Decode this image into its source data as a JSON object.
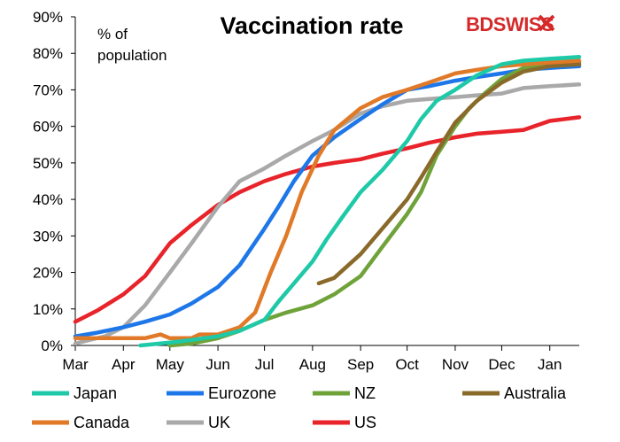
{
  "brand": {
    "logo_text": "BDSWISS",
    "logo_color": "#d42a2a"
  },
  "chart_data": {
    "type": "line",
    "title": "Vaccination rate",
    "unit_label": [
      "% of",
      "population"
    ],
    "xlabel": "",
    "ylabel": "",
    "x_ticks": [
      "Mar",
      "Apr",
      "May",
      "Jun",
      "Jul",
      "Aug",
      "Sep",
      "Oct",
      "Nov",
      "Dec",
      "Jan"
    ],
    "x_range": [
      "2021-03-01",
      "2022-01-20"
    ],
    "ylim": [
      0,
      90
    ],
    "y_ticks": [
      0,
      10,
      20,
      30,
      40,
      50,
      60,
      70,
      80,
      90
    ],
    "y_tick_labels": [
      "0%",
      "10%",
      "20%",
      "30%",
      "40%",
      "50%",
      "60%",
      "70%",
      "80%",
      "90%"
    ],
    "grid": false,
    "legend_position": "bottom",
    "series": [
      {
        "name": "Japan",
        "color": "#1ec9a8",
        "points": [
          [
            "2021-04-12",
            0
          ],
          [
            "2021-05-01",
            0.8
          ],
          [
            "2021-05-15",
            1.5
          ],
          [
            "2021-06-01",
            2.5
          ],
          [
            "2021-06-15",
            4
          ],
          [
            "2021-07-01",
            7
          ],
          [
            "2021-07-10",
            12
          ],
          [
            "2021-07-20",
            17
          ],
          [
            "2021-08-01",
            23
          ],
          [
            "2021-08-10",
            29
          ],
          [
            "2021-08-20",
            35
          ],
          [
            "2021-09-01",
            42
          ],
          [
            "2021-09-15",
            48
          ],
          [
            "2021-10-01",
            56
          ],
          [
            "2021-10-10",
            62
          ],
          [
            "2021-10-20",
            67
          ],
          [
            "2021-11-01",
            70
          ],
          [
            "2021-11-15",
            74
          ],
          [
            "2021-12-01",
            77
          ],
          [
            "2021-12-15",
            78
          ],
          [
            "2022-01-01",
            78.5
          ],
          [
            "2022-01-20",
            79
          ]
        ]
      },
      {
        "name": "Eurozone",
        "color": "#1e77e8",
        "points": [
          [
            "2021-03-01",
            2.5
          ],
          [
            "2021-03-15",
            3.5
          ],
          [
            "2021-04-01",
            5
          ],
          [
            "2021-04-15",
            6.5
          ],
          [
            "2021-05-01",
            8.5
          ],
          [
            "2021-05-15",
            11.5
          ],
          [
            "2021-06-01",
            16
          ],
          [
            "2021-06-15",
            22
          ],
          [
            "2021-07-01",
            32
          ],
          [
            "2021-07-10",
            38
          ],
          [
            "2021-07-20",
            45
          ],
          [
            "2021-08-01",
            52
          ],
          [
            "2021-08-15",
            57
          ],
          [
            "2021-09-01",
            62
          ],
          [
            "2021-09-15",
            66
          ],
          [
            "2021-10-01",
            70
          ],
          [
            "2021-10-15",
            71
          ],
          [
            "2021-11-01",
            72.5
          ],
          [
            "2021-11-15",
            73.5
          ],
          [
            "2021-12-01",
            74.5
          ],
          [
            "2021-12-15",
            75.5
          ],
          [
            "2022-01-01",
            76
          ],
          [
            "2022-01-20",
            76.5
          ]
        ]
      },
      {
        "name": "NZ",
        "color": "#6fa33a",
        "points": [
          [
            "2021-05-01",
            0
          ],
          [
            "2021-05-15",
            0.5
          ],
          [
            "2021-06-01",
            2
          ],
          [
            "2021-06-15",
            4
          ],
          [
            "2021-07-01",
            7
          ],
          [
            "2021-07-15",
            9
          ],
          [
            "2021-08-01",
            11
          ],
          [
            "2021-08-15",
            14
          ],
          [
            "2021-09-01",
            19
          ],
          [
            "2021-09-15",
            27
          ],
          [
            "2021-10-01",
            36
          ],
          [
            "2021-10-10",
            42
          ],
          [
            "2021-10-20",
            52
          ],
          [
            "2021-11-01",
            60
          ],
          [
            "2021-11-10",
            65
          ],
          [
            "2021-11-20",
            69
          ],
          [
            "2021-12-01",
            73
          ],
          [
            "2021-12-15",
            76
          ],
          [
            "2022-01-01",
            77
          ],
          [
            "2022-01-20",
            77.5
          ]
        ]
      },
      {
        "name": "Australia",
        "color": "#8a6a2a",
        "points": [
          [
            "2021-08-05",
            17
          ],
          [
            "2021-08-15",
            18.5
          ],
          [
            "2021-09-01",
            25
          ],
          [
            "2021-09-15",
            32
          ],
          [
            "2021-10-01",
            40
          ],
          [
            "2021-10-10",
            46
          ],
          [
            "2021-10-20",
            53
          ],
          [
            "2021-11-01",
            61
          ],
          [
            "2021-11-15",
            67
          ],
          [
            "2021-12-01",
            72
          ],
          [
            "2021-12-15",
            75
          ],
          [
            "2022-01-01",
            76.5
          ],
          [
            "2022-01-20",
            77
          ]
        ]
      },
      {
        "name": "Canada",
        "color": "#e07a28",
        "points": [
          [
            "2021-03-01",
            2
          ],
          [
            "2021-03-15",
            2
          ],
          [
            "2021-04-01",
            2
          ],
          [
            "2021-04-15",
            2
          ],
          [
            "2021-04-25",
            3
          ],
          [
            "2021-05-01",
            2
          ],
          [
            "2021-05-15",
            2
          ],
          [
            "2021-05-20",
            3
          ],
          [
            "2021-06-01",
            3
          ],
          [
            "2021-06-15",
            5
          ],
          [
            "2021-06-25",
            9
          ],
          [
            "2021-07-05",
            20
          ],
          [
            "2021-07-15",
            30
          ],
          [
            "2021-07-25",
            42
          ],
          [
            "2021-08-05",
            52
          ],
          [
            "2021-08-15",
            59
          ],
          [
            "2021-09-01",
            65
          ],
          [
            "2021-09-15",
            68
          ],
          [
            "2021-10-01",
            70
          ],
          [
            "2021-10-15",
            72
          ],
          [
            "2021-11-01",
            74.5
          ],
          [
            "2021-11-15",
            75.5
          ],
          [
            "2021-12-01",
            76.5
          ],
          [
            "2021-12-15",
            77
          ],
          [
            "2022-01-01",
            77.5
          ],
          [
            "2022-01-20",
            78
          ]
        ]
      },
      {
        "name": "UK",
        "color": "#a9a9a9",
        "points": [
          [
            "2021-03-01",
            0.5
          ],
          [
            "2021-03-10",
            1.5
          ],
          [
            "2021-03-20",
            2.5
          ],
          [
            "2021-04-01",
            5
          ],
          [
            "2021-04-15",
            11
          ],
          [
            "2021-05-01",
            20
          ],
          [
            "2021-05-15",
            28
          ],
          [
            "2021-06-01",
            38
          ],
          [
            "2021-06-15",
            45
          ],
          [
            "2021-07-01",
            48.5
          ],
          [
            "2021-07-15",
            52
          ],
          [
            "2021-08-01",
            56
          ],
          [
            "2021-08-15",
            59
          ],
          [
            "2021-09-01",
            63.5
          ],
          [
            "2021-09-15",
            65.5
          ],
          [
            "2021-10-01",
            67
          ],
          [
            "2021-10-15",
            67.5
          ],
          [
            "2021-11-01",
            68
          ],
          [
            "2021-11-15",
            68.5
          ],
          [
            "2021-12-01",
            69
          ],
          [
            "2021-12-15",
            70.5
          ],
          [
            "2022-01-01",
            71
          ],
          [
            "2022-01-20",
            71.5
          ]
        ]
      },
      {
        "name": "US",
        "color": "#e8232a",
        "points": [
          [
            "2021-03-01",
            6.5
          ],
          [
            "2021-03-15",
            9.5
          ],
          [
            "2021-04-01",
            14
          ],
          [
            "2021-04-15",
            19
          ],
          [
            "2021-05-01",
            28
          ],
          [
            "2021-05-15",
            33
          ],
          [
            "2021-06-01",
            38.5
          ],
          [
            "2021-06-15",
            42
          ],
          [
            "2021-07-01",
            45
          ],
          [
            "2021-07-15",
            47
          ],
          [
            "2021-08-01",
            49
          ],
          [
            "2021-08-15",
            50
          ],
          [
            "2021-09-01",
            51
          ],
          [
            "2021-09-15",
            52.5
          ],
          [
            "2021-10-01",
            54
          ],
          [
            "2021-10-15",
            55.5
          ],
          [
            "2021-11-01",
            57
          ],
          [
            "2021-11-15",
            58
          ],
          [
            "2021-12-01",
            58.5
          ],
          [
            "2021-12-15",
            59
          ],
          [
            "2022-01-01",
            61.5
          ],
          [
            "2022-01-20",
            62.5
          ]
        ]
      }
    ]
  }
}
